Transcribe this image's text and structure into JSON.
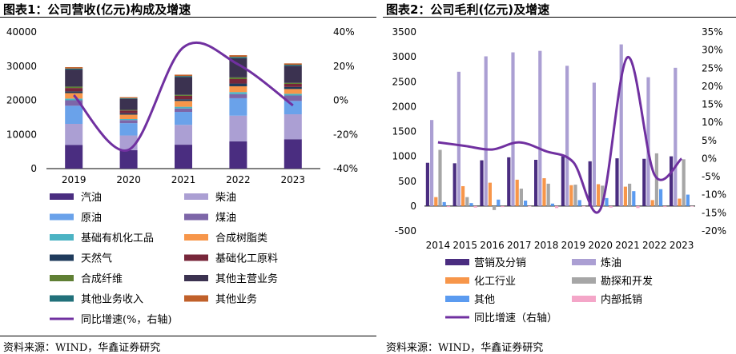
{
  "panel1": {
    "title": "图表1：公司营收(亿元)构成及增速",
    "source": "资料来源：WIND，华鑫证券研究"
  },
  "panel2": {
    "title": "图表2：公司毛利(亿元)及增速",
    "source": "资料来源：WIND，华鑫证券研究"
  },
  "chart_data": [
    {
      "type": "bar",
      "stacked": true,
      "title": "图表1：公司营收(亿元)构成及增速",
      "categories": [
        "2019",
        "2020",
        "2021",
        "2022",
        "2023"
      ],
      "ylim": [
        0,
        40000
      ],
      "y_ticks": [
        0,
        10000,
        20000,
        30000,
        40000
      ],
      "y2lim": [
        -0.4,
        0.4
      ],
      "y2_ticks": [
        "-40%",
        "-20%",
        "0%",
        "20%",
        "40%"
      ],
      "grid": false,
      "legend_position": "bottom",
      "series": [
        {
          "name": "汽油",
          "color": "#4a2d80",
          "values": [
            6900,
            5400,
            7000,
            8000,
            8600
          ]
        },
        {
          "name": "柴油",
          "color": "#ab9fd3",
          "values": [
            6200,
            4300,
            5800,
            7500,
            7300
          ]
        },
        {
          "name": "原油",
          "color": "#6aa2ea",
          "values": [
            5300,
            3600,
            3800,
            5100,
            3900
          ]
        },
        {
          "name": "煤油",
          "color": "#7d66a8",
          "values": [
            1600,
            900,
            1000,
            1200,
            1600
          ]
        },
        {
          "name": "基础有机化工品",
          "color": "#4bb3c3",
          "values": [
            500,
            300,
            500,
            600,
            500
          ]
        },
        {
          "name": "合成树脂类",
          "color": "#f7964a",
          "values": [
            1600,
            1300,
            1700,
            1700,
            1400
          ]
        },
        {
          "name": "天然气",
          "color": "#1f3b5c",
          "values": [
            500,
            400,
            500,
            800,
            600
          ]
        },
        {
          "name": "基础化工原料",
          "color": "#77263a",
          "values": [
            1000,
            800,
            1000,
            1300,
            900
          ]
        },
        {
          "name": "合成纤维",
          "color": "#5f7f34",
          "values": [
            400,
            200,
            300,
            500,
            300
          ]
        },
        {
          "name": "其他主营业务",
          "color": "#3b3250",
          "values": [
            5000,
            3200,
            5200,
            5600,
            5000
          ]
        },
        {
          "name": "其他业务收入",
          "color": "#21707a",
          "values": [
            300,
            200,
            300,
            400,
            300
          ]
        },
        {
          "name": "其他业务",
          "color": "#c0602a",
          "values": [
            400,
            300,
            400,
            500,
            400
          ]
        }
      ],
      "line_series": {
        "name": "同比增速(%，右轴)",
        "color": "#7030a0",
        "axis": "right",
        "values": [
          0.03,
          -0.29,
          0.31,
          0.21,
          -0.03
        ]
      }
    },
    {
      "type": "bar",
      "title": "图表2：公司毛利(亿元)及增速",
      "categories": [
        "2014",
        "2015",
        "2016",
        "2017",
        "2018",
        "2019",
        "2020",
        "2021",
        "2022",
        "2023"
      ],
      "ylim": [
        -500,
        3500
      ],
      "y_ticks": [
        -500,
        0,
        500,
        1000,
        1500,
        2000,
        2500,
        3000,
        3500
      ],
      "y2lim": [
        -0.2,
        0.35
      ],
      "y2_ticks": [
        "-20%",
        "-15%",
        "-10%",
        "-5%",
        "0%",
        "5%",
        "10%",
        "15%",
        "20%",
        "25%",
        "30%",
        "35%"
      ],
      "grid": false,
      "legend_position": "bottom",
      "series": [
        {
          "name": "营销及分销",
          "color": "#4a2d80",
          "values": [
            870,
            860,
            920,
            980,
            930,
            1000,
            900,
            960,
            950,
            1000
          ]
        },
        {
          "name": "炼油",
          "color": "#ab9fd3",
          "values": [
            1730,
            2700,
            3010,
            3090,
            3120,
            2820,
            2480,
            3250,
            2590,
            2780
          ]
        },
        {
          "name": "化工行业",
          "color": "#f7964a",
          "values": [
            180,
            400,
            470,
            530,
            560,
            420,
            440,
            390,
            120,
            150
          ]
        },
        {
          "name": "勘探和开发",
          "color": "#a6a6a6",
          "values": [
            1130,
            180,
            -80,
            350,
            450,
            430,
            410,
            450,
            1060,
            940
          ]
        },
        {
          "name": "其他",
          "color": "#5b9bf0",
          "values": [
            80,
            60,
            130,
            110,
            50,
            120,
            160,
            300,
            340,
            230
          ]
        },
        {
          "name": "内部抵销",
          "color": "#f4a6c8",
          "values": [
            -20,
            -30,
            -20,
            -10,
            -40,
            -10,
            -30,
            -40,
            -20,
            -10
          ]
        }
      ],
      "line_series": {
        "name": "同比增速（右轴）",
        "color": "#7030a0",
        "axis": "right",
        "values": [
          0.045,
          0.035,
          0.025,
          0.045,
          0.02,
          -0.01,
          -0.14,
          0.28,
          -0.045,
          0.0
        ]
      }
    }
  ]
}
